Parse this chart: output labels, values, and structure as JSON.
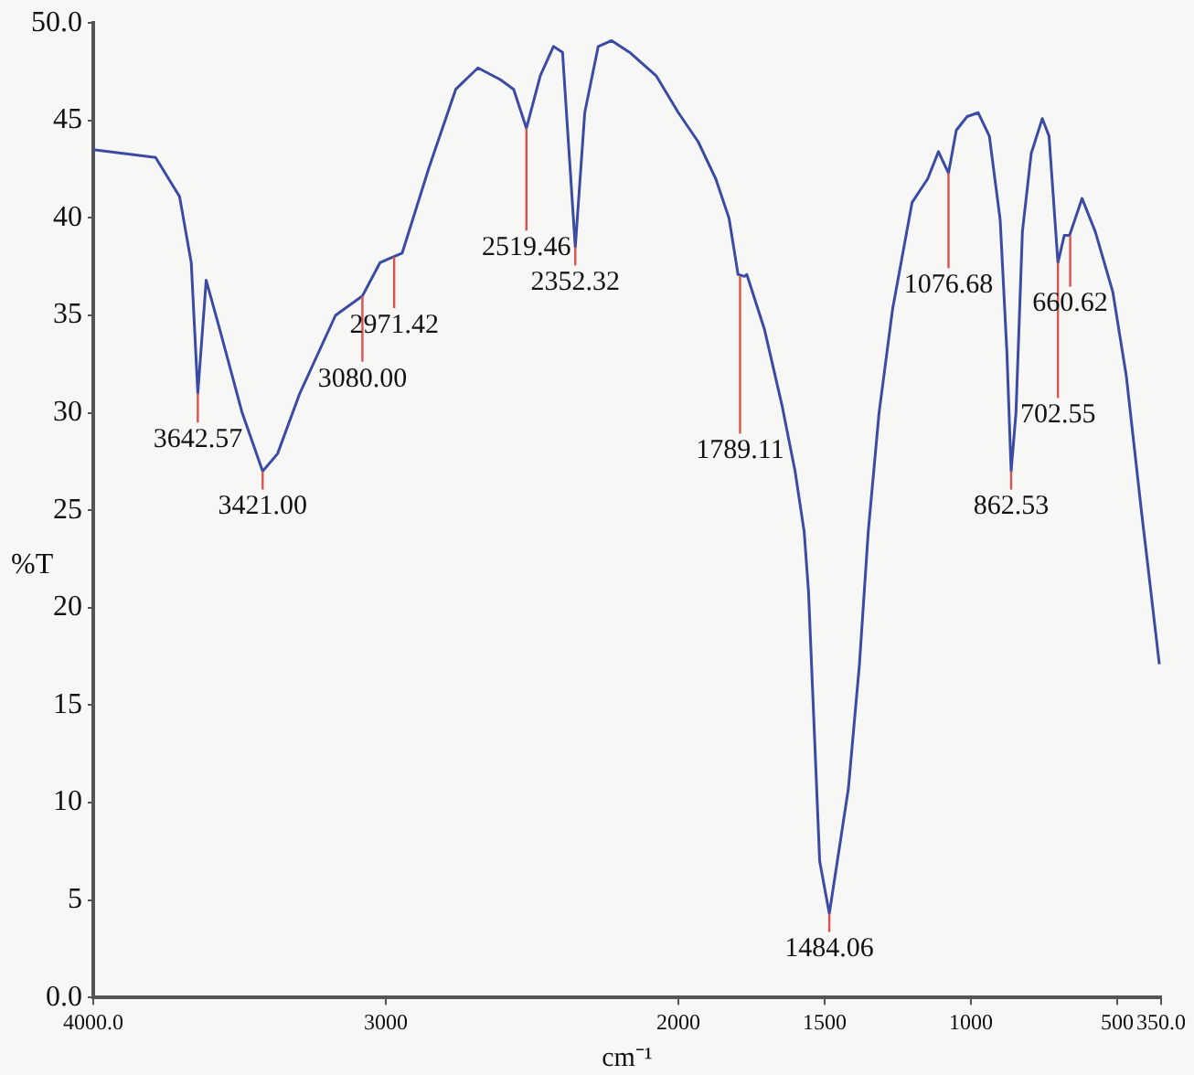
{
  "chart_data": {
    "type": "line",
    "xlabel": "cm⁻¹",
    "ylabel": "%T",
    "xlim": [
      4000,
      350
    ],
    "ylim": [
      0,
      50
    ],
    "xticks": [
      {
        "value": 4000,
        "label": "4000.0"
      },
      3000,
      2000,
      1500,
      1000,
      500,
      {
        "value": 350,
        "label": "350.0"
      }
    ],
    "yticks": [
      {
        "value": 0,
        "label": "0.0"
      },
      5,
      10,
      15,
      20,
      25,
      30,
      35,
      40,
      45,
      {
        "value": 50,
        "label": "50.0"
      }
    ],
    "grid": false,
    "legend": false,
    "marker": "none",
    "line_style": "solid",
    "series": [
      {
        "color": "#3b4ba3",
        "x": [
          4000,
          3787,
          3705,
          3665,
          3642.57,
          3614,
          3568,
          3491,
          3421,
          3370,
          3294,
          3172,
          3080,
          3020,
          2990,
          2944,
          2852,
          2761,
          2685,
          2609,
          2563,
          2519.46,
          2472,
          2427,
          2396,
          2352.32,
          2320,
          2274,
          2228,
          2167,
          2076,
          2000,
          1932,
          1872,
          1827,
          1796,
          1774,
          1766,
          1706,
          1646,
          1601,
          1570,
          1555,
          1517,
          1484.06,
          1419,
          1381,
          1351,
          1314,
          1268,
          1201,
          1148,
          1111,
          1076.68,
          1050,
          1013,
          975,
          937,
          900,
          877,
          862.53,
          846,
          824,
          794,
          756,
          733,
          702.55,
          681,
          663,
          620,
          575,
          515,
          469,
          416,
          394,
          356
        ],
        "values": [
          43.5,
          43.1,
          41.1,
          37.7,
          31.0,
          36.8,
          34.3,
          30.0,
          27.0,
          27.9,
          31.0,
          35.0,
          36.0,
          37.7,
          37.9,
          38.2,
          42.6,
          46.6,
          47.7,
          47.1,
          46.6,
          44.6,
          47.3,
          48.8,
          48.5,
          38.5,
          45.4,
          48.8,
          49.1,
          48.5,
          47.3,
          45.4,
          43.9,
          42.0,
          40.0,
          37.1,
          37.0,
          37.1,
          34.3,
          30.4,
          27.0,
          23.9,
          20.8,
          7.0,
          4.3,
          10.7,
          17.1,
          23.9,
          30.0,
          35.3,
          40.8,
          42.0,
          43.4,
          42.3,
          44.5,
          45.2,
          45.4,
          44.2,
          39.9,
          33.1,
          27.0,
          30.0,
          39.3,
          43.3,
          45.1,
          44.2,
          37.7,
          39.1,
          39.1,
          41.0,
          39.3,
          36.2,
          31.9,
          24.8,
          22.0,
          17.1
        ]
      }
    ],
    "annotations": [
      {
        "text": "3642.57",
        "x": 3642.57,
        "y": 31.0
      },
      {
        "text": "3421.00",
        "x": 3421,
        "y": 27.0
      },
      {
        "text": "3080.00",
        "x": 3080,
        "y": 36.0
      },
      {
        "text": "2971.42",
        "x": 2971.42,
        "y": 38.0
      },
      {
        "text": "2519.46",
        "x": 2519.46,
        "y": 44.6
      },
      {
        "text": "2352.32",
        "x": 2352.32,
        "y": 38.5
      },
      {
        "text": "1789.11",
        "x": 1789.11,
        "y": 37.0
      },
      {
        "text": "1484.06",
        "x": 1484.06,
        "y": 4.3
      },
      {
        "text": "1076.68",
        "x": 1076.68,
        "y": 42.3
      },
      {
        "text": "862.53",
        "x": 862.53,
        "y": 27.0
      },
      {
        "text": "702.55",
        "x": 702.55,
        "y": 37.7
      },
      {
        "text": "660.62",
        "x": 660.62,
        "y": 39.1
      }
    ]
  }
}
